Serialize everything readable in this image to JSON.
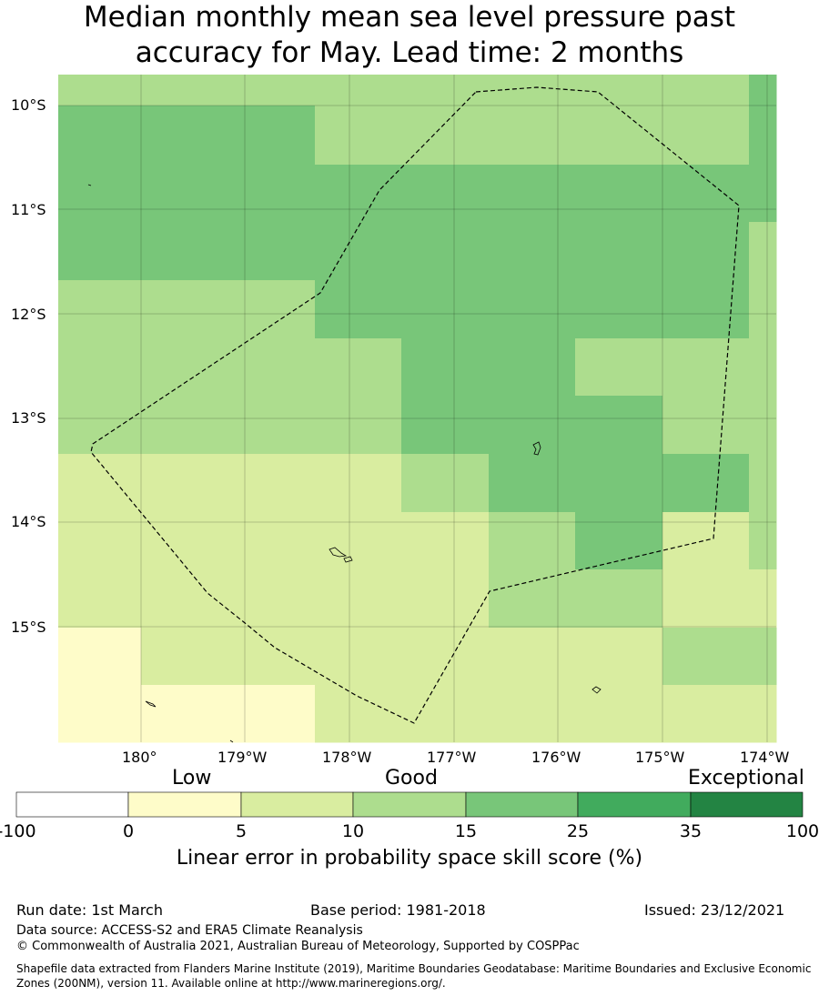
{
  "title": {
    "line1": "Median monthly mean sea level pressure past",
    "line2": "accuracy for May. Lead time: 2 months"
  },
  "map": {
    "lat_labels": [
      "10°S",
      "11°S",
      "12°S",
      "13°S",
      "14°S",
      "15°S"
    ],
    "lon_labels": [
      "180°",
      "179°W",
      "178°W",
      "177°W",
      "176°W",
      "175°W",
      "174°W"
    ],
    "grid_lines": true,
    "cells": [
      [
        10,
        10,
        10,
        10,
        10,
        10,
        10,
        10,
        15
      ],
      [
        15,
        15,
        15,
        10,
        10,
        10,
        10,
        10,
        15
      ],
      [
        15,
        15,
        15,
        15,
        15,
        15,
        15,
        15,
        15
      ],
      [
        15,
        15,
        15,
        15,
        15,
        15,
        15,
        15,
        10
      ],
      [
        10,
        10,
        10,
        15,
        15,
        15,
        15,
        15,
        10
      ],
      [
        10,
        10,
        10,
        10,
        15,
        15,
        10,
        10,
        10
      ],
      [
        10,
        10,
        10,
        10,
        15,
        15,
        15,
        10,
        10
      ],
      [
        5,
        5,
        5,
        5,
        10,
        15,
        15,
        15,
        10
      ],
      [
        5,
        5,
        5,
        5,
        5,
        10,
        15,
        5,
        10
      ],
      [
        5,
        5,
        5,
        5,
        5,
        10,
        10,
        5,
        5
      ],
      [
        0,
        5,
        5,
        5,
        5,
        5,
        5,
        10,
        10
      ],
      [
        0,
        0,
        0,
        5,
        5,
        5,
        5,
        5,
        5
      ]
    ],
    "colors": {
      "c_100_0": "#ffffff",
      "c0_5": "#fefcc9",
      "c5_10": "#d9eda0",
      "c10_15": "#addd8e",
      "c15_25": "#78c679",
      "c25_35": "#41ab5d",
      "c35_100": "#238443"
    }
  },
  "colorbar": {
    "words": [
      "Low",
      "Good",
      "Exceptional"
    ],
    "ticks": [
      "-100",
      "0",
      "5",
      "10",
      "15",
      "25",
      "35",
      "100"
    ],
    "label": "Linear error in probability space skill score (%)"
  },
  "footer": {
    "run_date": "Run date: 1st March",
    "base_period": "Base period: 1981-2018",
    "issued": "Issued: 23/12/2021",
    "data_source": "Data source: ACCESS-S2 and ERA5 Climate Reanalysis",
    "copyright": "© Commonwealth of Australia 2021, Australian Bureau of Meteorology, Supported by COSPPac",
    "shapefile": "Shapefile data extracted from Flanders Marine Institute (2019), Maritime Boundaries Geodatabase: Maritime Boundaries and Exclusive Economic Zones (200NM), version 11. Available online at http://www.marineregions.org/."
  }
}
